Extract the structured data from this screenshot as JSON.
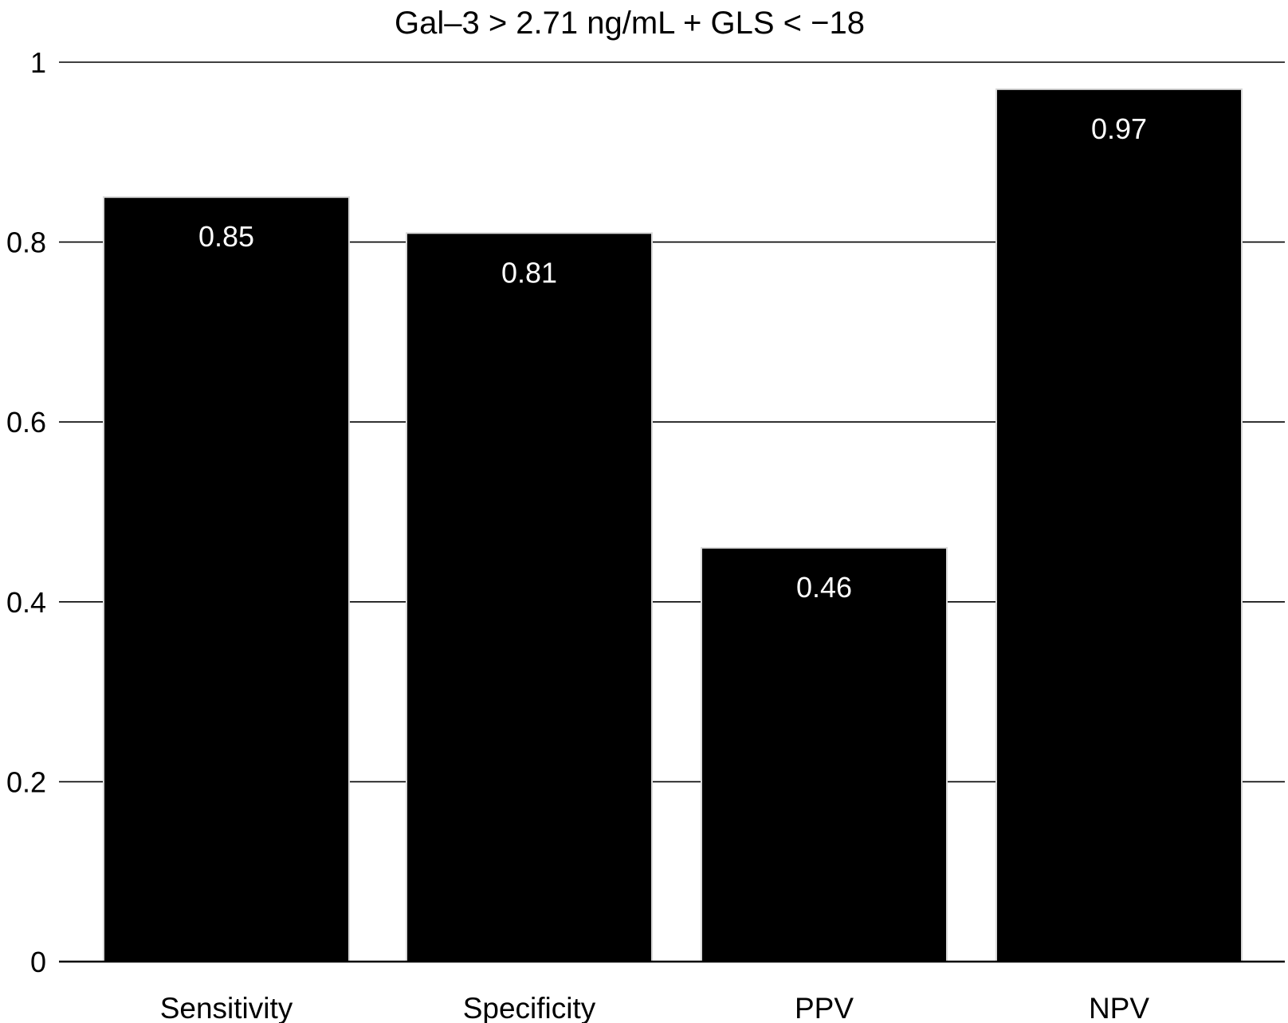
{
  "chart_data": {
    "type": "bar",
    "title": "Gal–3 > 2.71 ng/mL + GLS < −18",
    "categories": [
      "Sensitivity",
      "Specificity",
      "PPV",
      "NPV"
    ],
    "values": [
      0.85,
      0.81,
      0.46,
      0.97
    ],
    "data_labels": [
      "0.85",
      "0.81",
      "0.46",
      "0.97"
    ],
    "y_ticks": [
      0,
      0.2,
      0.4,
      0.6,
      0.8,
      1
    ],
    "y_tick_labels": [
      "0",
      "0.2",
      "0.4",
      "0.6",
      "0.8",
      "1"
    ],
    "ylim": [
      0,
      1
    ],
    "xlabel": "",
    "ylabel": "",
    "grid": true,
    "legend": "none",
    "colors": {
      "bar_fill": "#000000",
      "bar_edge": "#d9d9d9",
      "data_label": "#ffffff",
      "grid": "#000000"
    }
  }
}
